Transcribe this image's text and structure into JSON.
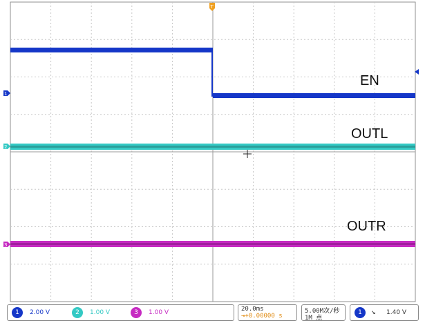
{
  "trace_labels": {
    "en": "EN",
    "outl": "OUTL",
    "outr": "OUTR"
  },
  "channels": [
    {
      "id": "1",
      "scale": "2.00 V",
      "color": "#1537c8"
    },
    {
      "id": "2",
      "scale": "1.00 V",
      "color": "#34c9c4"
    },
    {
      "id": "3",
      "scale": "1.00 V",
      "color": "#c62bc2"
    }
  ],
  "markers": {
    "ch1": "1",
    "ch2": "2",
    "ch3": "3",
    "trigger_position": "T"
  },
  "timebase": {
    "scale": "20.0ms",
    "position": "+0.00000 s"
  },
  "acquisition": {
    "rate": "5.00M次/秒",
    "record": "1M 点"
  },
  "trigger": {
    "source": "1",
    "slope_icon": "falling-edge",
    "level": "1.40 V"
  },
  "colors": {
    "grid": "#c7c7c7",
    "background": "#ffffff"
  }
}
